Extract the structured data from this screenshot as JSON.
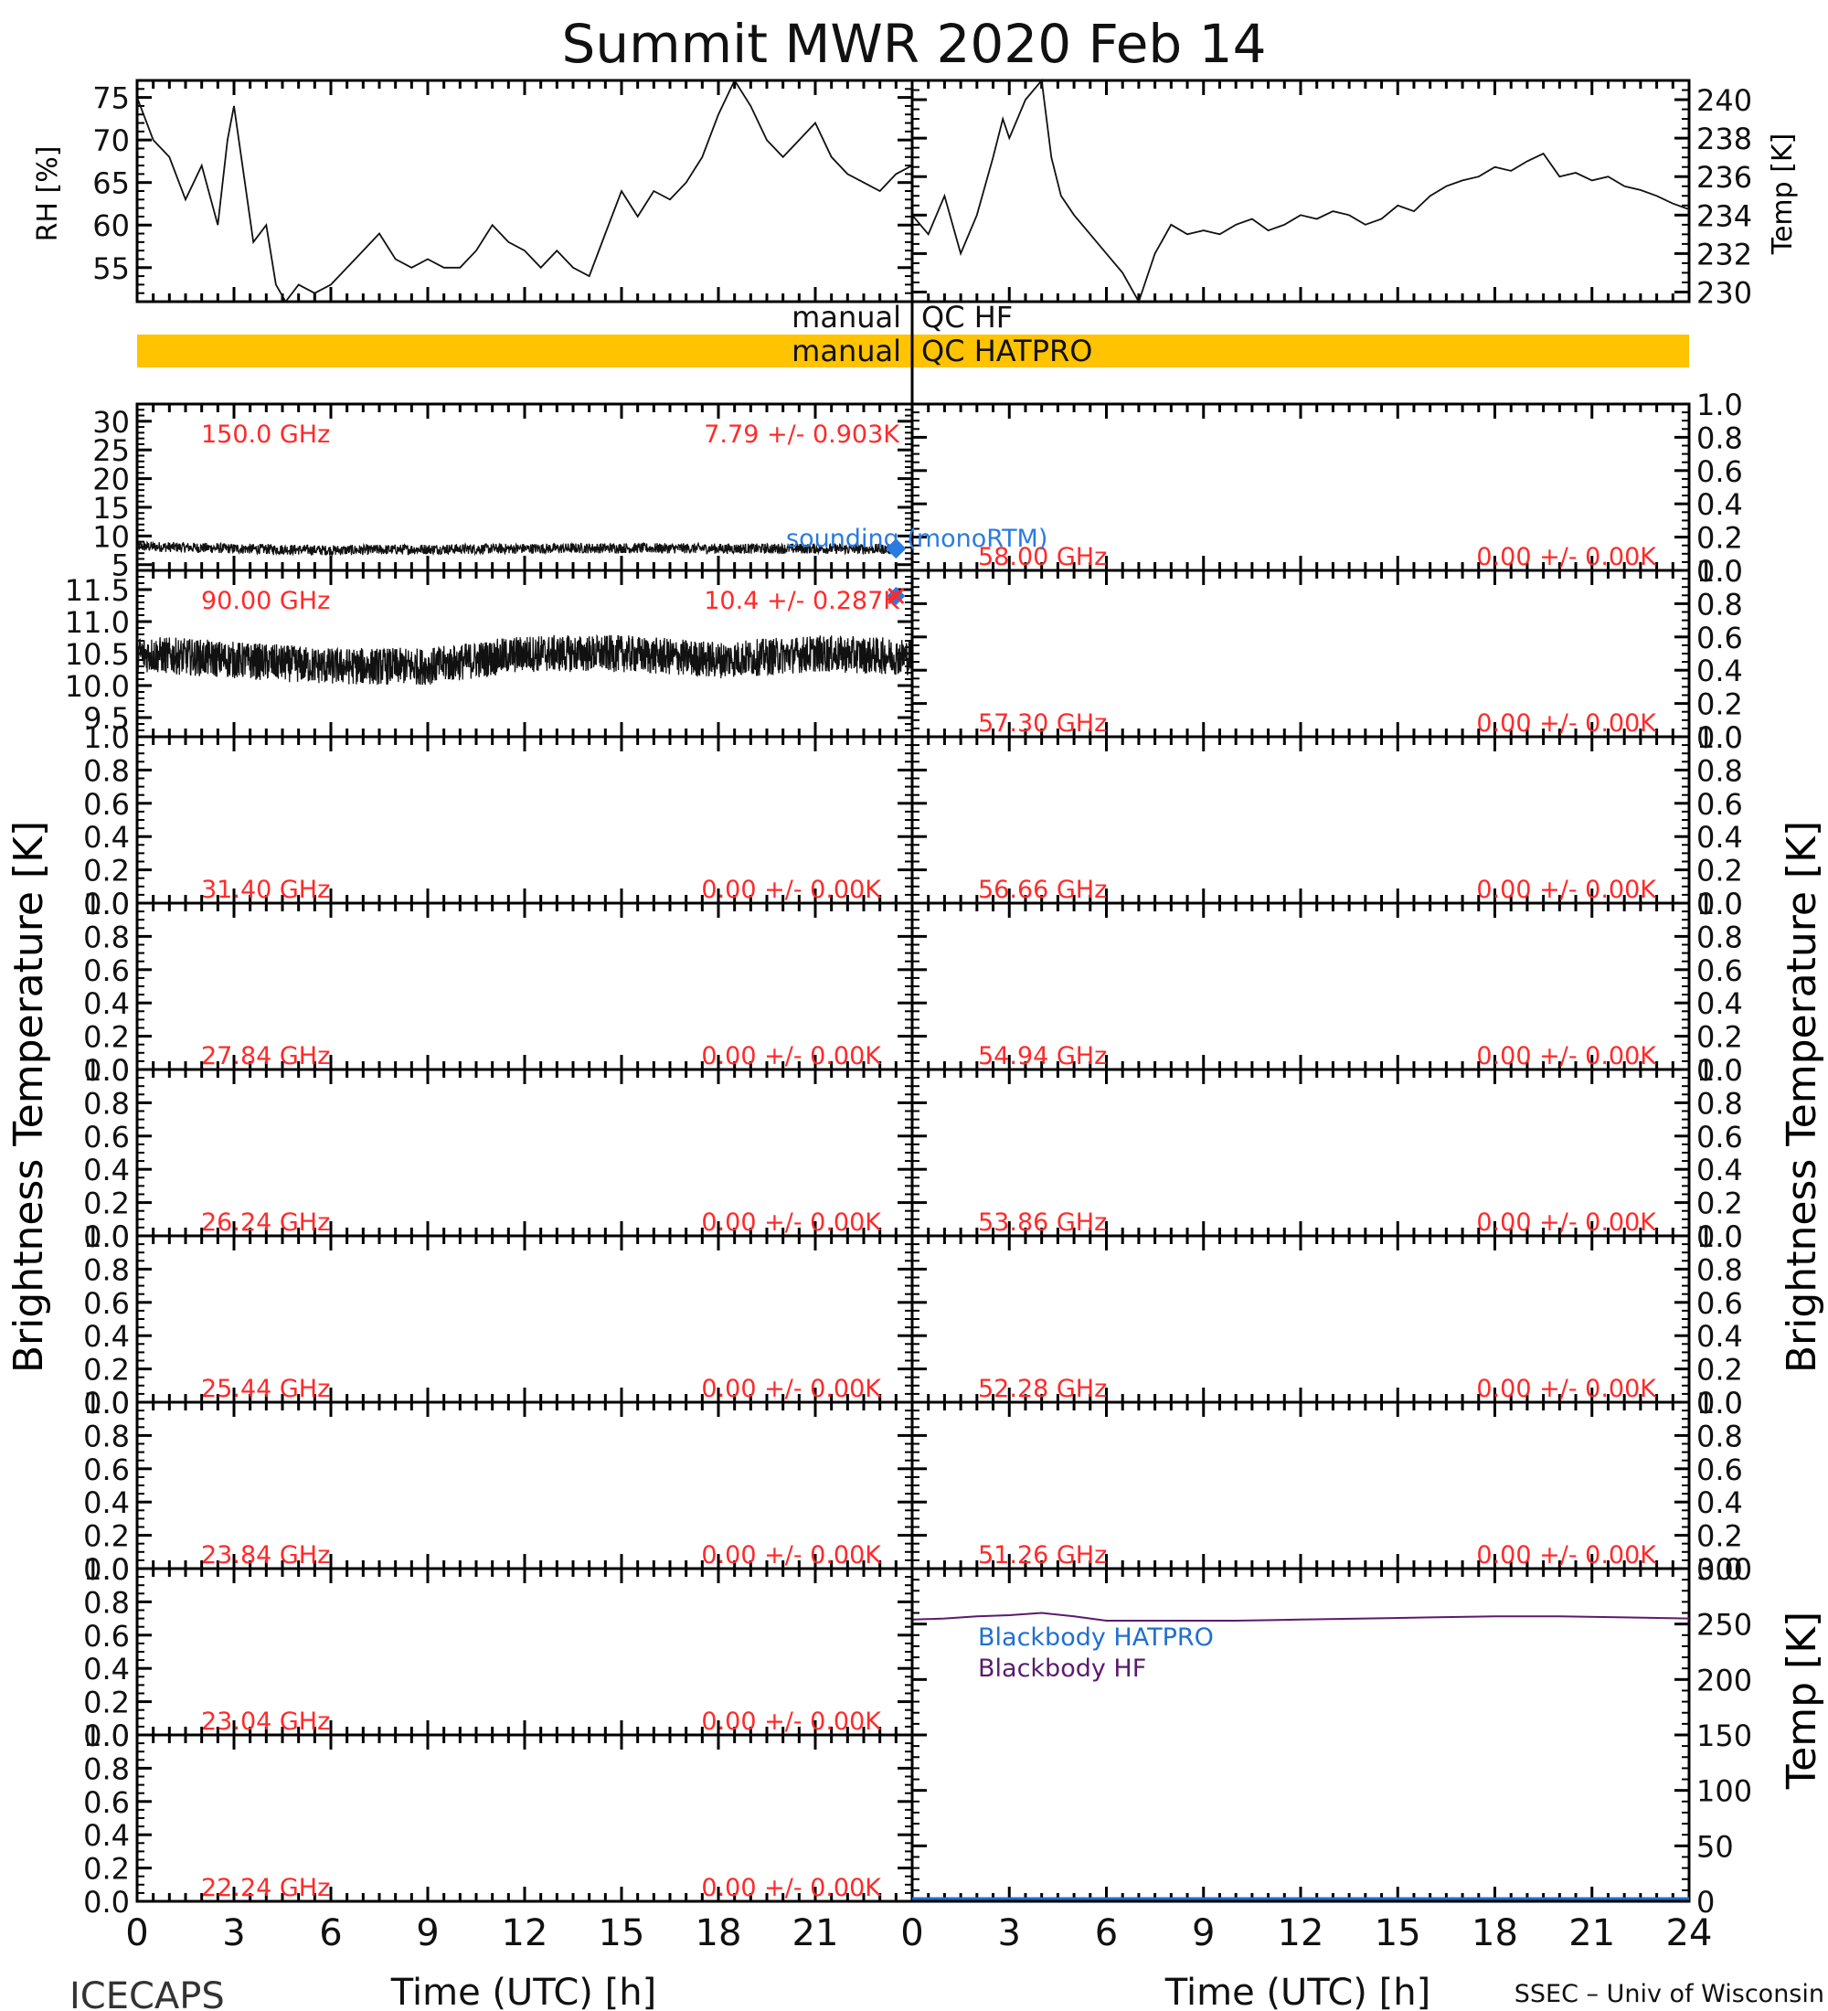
{
  "title": "Summit MWR 2020 Feb 14",
  "footer_left": "ICECAPS",
  "footer_right": "SSEC – Univ of Wisconsin",
  "x_axis_label": "Time (UTC) [h]",
  "x_ticks": [
    "0",
    "3",
    "6",
    "9",
    "12",
    "15",
    "18",
    "21",
    "24"
  ],
  "left_y_title": "Brightness Temperature [K]",
  "right_y_title": "Brightness Temperature [K]",
  "colors": {
    "red_text": "#ff2a2a",
    "qc_bar": "#ffc300",
    "sounding": "#2a7be0",
    "blackbody_hatpro": "#1f6fd1",
    "blackbody_hf": "#5b1a6e",
    "trace": "#111111"
  },
  "met": {
    "rh_label": "RH [%]",
    "rh_ticks": [
      "55",
      "60",
      "65",
      "70",
      "75"
    ],
    "temp_label": "Temp [K]",
    "temp_ticks": [
      "230",
      "232",
      "234",
      "236",
      "238",
      "240"
    ]
  },
  "qc": {
    "hf_left": "manual",
    "hf_right": "QC HF",
    "hatpro_left": "manual",
    "hatpro_right": "QC HATPRO"
  },
  "unit_ticks": [
    "0.0",
    "0.2",
    "0.4",
    "0.6",
    "0.8",
    "1.0"
  ],
  "legend": {
    "sounding": "sounding (monoRTM)",
    "blackbody_hatpro": "Blackbody HATPRO",
    "blackbody_hf": "Blackbody HF",
    "bb_label": "Temp [K]",
    "bb_ticks": [
      "0",
      "50",
      "100",
      "150",
      "200",
      "250",
      "300"
    ]
  },
  "channels_left": [
    {
      "freq": "150.0 GHz",
      "stat": "7.79 +/- 0.903K",
      "ticks": [
        "5",
        "10",
        "15",
        "20",
        "25",
        "30"
      ]
    },
    {
      "freq": "90.00 GHz",
      "stat": "10.4 +/- 0.287K",
      "ticks": [
        "9.5",
        "10.0",
        "10.5",
        "11.0",
        "11.5"
      ]
    },
    {
      "freq": "31.40 GHz",
      "stat": "0.00 +/- 0.00K"
    },
    {
      "freq": "27.84 GHz",
      "stat": "0.00 +/- 0.00K"
    },
    {
      "freq": "26.24 GHz",
      "stat": "0.00 +/- 0.00K"
    },
    {
      "freq": "25.44 GHz",
      "stat": "0.00 +/- 0.00K"
    },
    {
      "freq": "23.84 GHz",
      "stat": "0.00 +/- 0.00K"
    },
    {
      "freq": "23.04 GHz",
      "stat": "0.00 +/- 0.00K"
    },
    {
      "freq": "22.24 GHz",
      "stat": "0.00 +/- 0.00K"
    }
  ],
  "channels_right": [
    {
      "freq": "58.00 GHz",
      "stat": "0.00 +/- 0.00K"
    },
    {
      "freq": "57.30 GHz",
      "stat": "0.00 +/- 0.00K"
    },
    {
      "freq": "56.66 GHz",
      "stat": "0.00 +/- 0.00K"
    },
    {
      "freq": "54.94 GHz",
      "stat": "0.00 +/- 0.00K"
    },
    {
      "freq": "53.86 GHz",
      "stat": "0.00 +/- 0.00K"
    },
    {
      "freq": "52.28 GHz",
      "stat": "0.00 +/- 0.00K"
    },
    {
      "freq": "51.26 GHz",
      "stat": "0.00 +/- 0.00K"
    }
  ],
  "chart_data": [
    {
      "type": "line",
      "panel": "RH",
      "xlabel": "",
      "ylabel": "RH [%]",
      "xlim": [
        0,
        24
      ],
      "ylim": [
        51,
        77
      ],
      "x": [
        0,
        0.5,
        1,
        1.5,
        2,
        2.5,
        2.8,
        3,
        3.3,
        3.6,
        4,
        4.3,
        4.6,
        5,
        5.5,
        6,
        6.5,
        7,
        7.5,
        8,
        8.5,
        9,
        9.5,
        10,
        10.5,
        11,
        11.5,
        12,
        12.5,
        13,
        13.5,
        14,
        14.5,
        15,
        15.5,
        16,
        16.5,
        17,
        17.5,
        18,
        18.5,
        19,
        19.5,
        20,
        20.5,
        21,
        21.5,
        22,
        22.5,
        23,
        23.5,
        24
      ],
      "values": [
        75,
        70,
        68,
        63,
        67,
        60,
        70,
        74,
        66,
        58,
        60,
        53,
        51,
        53,
        52,
        53,
        55,
        57,
        59,
        56,
        55,
        56,
        55,
        55,
        57,
        60,
        58,
        57,
        55,
        57,
        55,
        54,
        59,
        64,
        61,
        64,
        63,
        65,
        68,
        73,
        77,
        74,
        70,
        68,
        70,
        72,
        68,
        66,
        65,
        64,
        66,
        67
      ]
    },
    {
      "type": "line",
      "panel": "Temp",
      "xlabel": "",
      "ylabel": "Temp [K]",
      "xlim": [
        0,
        24
      ],
      "ylim": [
        229.5,
        241
      ],
      "x": [
        0,
        0.5,
        1,
        1.5,
        2,
        2.5,
        2.8,
        3,
        3.5,
        4,
        4.3,
        4.6,
        5,
        5.5,
        6,
        6.5,
        7,
        7.5,
        8,
        8.5,
        9,
        9.5,
        10,
        10.5,
        11,
        11.5,
        12,
        12.5,
        13,
        13.5,
        14,
        14.5,
        15,
        15.5,
        16,
        16.5,
        17,
        17.5,
        18,
        18.5,
        19,
        19.5,
        20,
        20.5,
        21,
        21.5,
        22,
        22.5,
        23,
        23.5,
        24
      ],
      "values": [
        234,
        233,
        235,
        232,
        234,
        237,
        239,
        238,
        240,
        241,
        237,
        235,
        234,
        233,
        232,
        231,
        229.5,
        232,
        233.5,
        233,
        233.2,
        233,
        233.5,
        233.8,
        233.2,
        233.5,
        234,
        233.8,
        234.2,
        234,
        233.5,
        233.8,
        234.5,
        234.2,
        235,
        235.5,
        235.8,
        236,
        236.5,
        236.3,
        236.8,
        237.2,
        236,
        236.2,
        235.8,
        236,
        235.5,
        235.3,
        235,
        234.6,
        234.3
      ]
    },
    {
      "type": "line",
      "panel": "150.0 GHz",
      "ylabel": "Brightness Temperature [K]",
      "xlim": [
        0,
        24
      ],
      "ylim": [
        4,
        33
      ],
      "x": [
        0,
        3,
        6,
        9,
        12,
        15,
        18,
        21,
        23.5
      ],
      "values": [
        8.2,
        7.8,
        7.5,
        7.7,
        7.8,
        7.9,
        7.8,
        7.8,
        7.7
      ],
      "noise": 0.9,
      "sounding": {
        "x": 23.5,
        "y": 7.8
      }
    },
    {
      "type": "line",
      "panel": "90.00 GHz",
      "ylabel": "Brightness Temperature [K]",
      "xlim": [
        0,
        24
      ],
      "ylim": [
        9.2,
        11.8
      ],
      "x": [
        0,
        3,
        6,
        9,
        12,
        15,
        18,
        21,
        24
      ],
      "values": [
        10.5,
        10.4,
        10.3,
        10.3,
        10.5,
        10.5,
        10.4,
        10.5,
        10.45
      ],
      "noise": 0.29,
      "sounding": {
        "x": 23.5,
        "y": 11.4
      }
    },
    {
      "type": "line",
      "panel": "Blackbody",
      "ylabel": "Temp [K]",
      "xlim": [
        0,
        24
      ],
      "ylim": [
        0,
        300
      ],
      "series": [
        {
          "name": "Blackbody HATPRO",
          "x": [
            0,
            24
          ],
          "values": [
            0,
            0
          ]
        },
        {
          "name": "Blackbody HF",
          "x": [
            0,
            1,
            2,
            3,
            4,
            5,
            6,
            8,
            10,
            12,
            14,
            16,
            18,
            20,
            22,
            24
          ],
          "values": [
            254,
            255,
            257,
            258,
            260,
            257,
            253,
            253,
            253,
            254,
            255,
            256,
            257,
            257,
            256,
            255
          ]
        }
      ]
    }
  ]
}
